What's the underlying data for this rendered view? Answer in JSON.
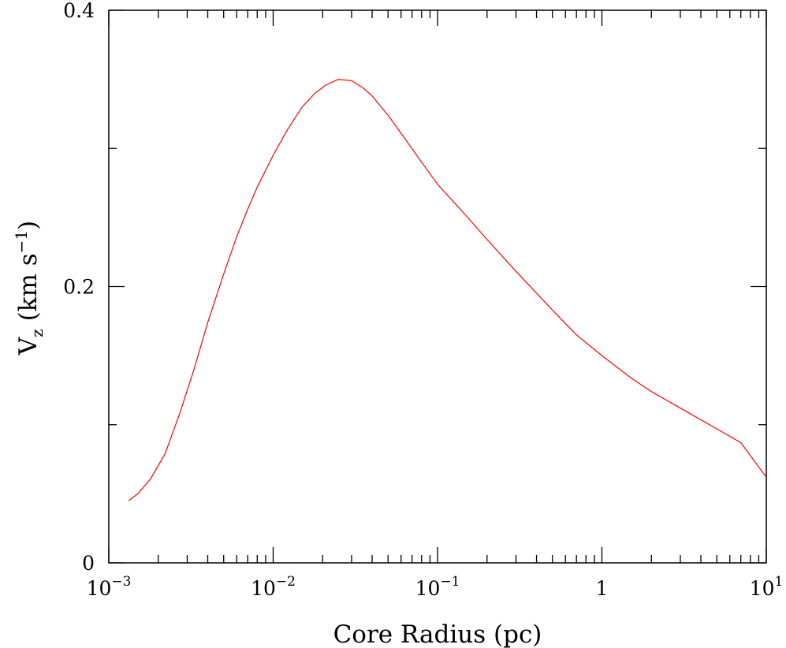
{
  "chart_data": {
    "type": "line",
    "title": "",
    "xlabel": "Core Radius (pc)",
    "ylabel": {
      "base": "V",
      "subscript": "z",
      "units_prefix": " (km s",
      "units_exponent": "−1",
      "units_suffix": ")"
    },
    "xscale": "log",
    "xlim": [
      0.001,
      10
    ],
    "ylim": [
      0,
      0.4
    ],
    "grid": false,
    "legend": "none",
    "series_color": "#ff0000",
    "x_ticks": [
      {
        "value": 0.001,
        "base": "10",
        "exp": "−3"
      },
      {
        "value": 0.01,
        "base": "10",
        "exp": "−2"
      },
      {
        "value": 0.1,
        "base": "10",
        "exp": "−1"
      },
      {
        "value": 1,
        "base": "1",
        "exp": ""
      },
      {
        "value": 10,
        "base": "10",
        "exp": "1"
      }
    ],
    "y_ticks": [
      {
        "value": 0,
        "label": "0"
      },
      {
        "value": 0.2,
        "label": "0.2"
      },
      {
        "value": 0.4,
        "label": "0.4"
      }
    ],
    "y_minor_ticks": [
      0.1,
      0.3
    ],
    "series": [
      {
        "x": [
          0.00132,
          0.0015,
          0.0018,
          0.0022,
          0.0027,
          0.0033,
          0.004,
          0.005,
          0.006,
          0.007,
          0.008,
          0.01,
          0.012,
          0.015,
          0.018,
          0.021,
          0.025,
          0.03,
          0.035,
          0.04,
          0.05,
          0.06,
          0.08,
          0.1,
          0.15,
          0.2,
          0.3,
          0.5,
          0.7,
          1,
          1.5,
          2,
          3,
          5,
          7,
          10
        ],
        "y": [
          0.045,
          0.05,
          0.061,
          0.079,
          0.108,
          0.14,
          0.174,
          0.209,
          0.236,
          0.256,
          0.272,
          0.295,
          0.312,
          0.33,
          0.34,
          0.346,
          0.35,
          0.349,
          0.344,
          0.338,
          0.324,
          0.311,
          0.29,
          0.274,
          0.251,
          0.234,
          0.211,
          0.183,
          0.165,
          0.15,
          0.134,
          0.124,
          0.112,
          0.097,
          0.087,
          0.062
        ]
      }
    ]
  }
}
